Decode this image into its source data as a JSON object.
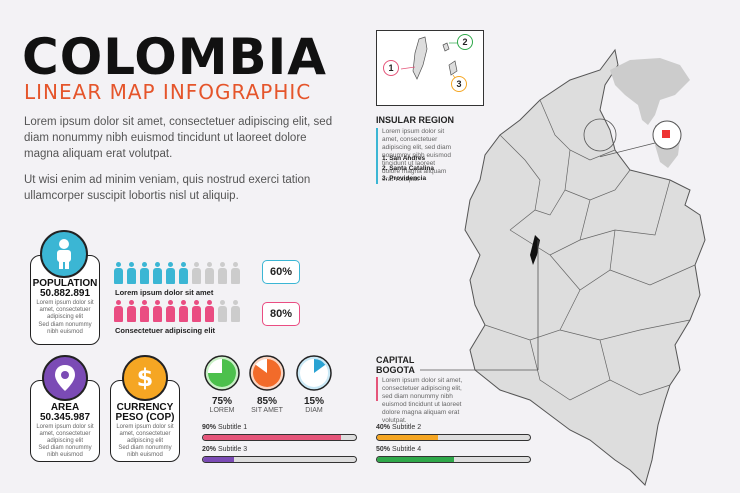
{
  "header": {
    "title": "COLOMBIA",
    "subtitle": "LINEAR MAP INFOGRAPHIC"
  },
  "intro": {
    "para1": "Lorem ipsum dolor sit amet, consectetuer adipiscing elit, sed diam nonummy nibh euismod tincidunt ut laoreet dolore magna aliquam erat volutpat.",
    "para2": "Ut wisi enim ad minim veniam, quis nostrud exerci tation ullamcorper suscipit lobortis nisl ut aliquip."
  },
  "population": {
    "label": "POPULATION",
    "value": "50.882.891",
    "text1": "Lorem ipsum dolor sit amet, consectetuer adipiscing elit",
    "text2": "Sed diam nonummy nibh euismod"
  },
  "people_rows": [
    {
      "percent_label": "60%",
      "caption": "Lorem ipsum dolor sit amet",
      "filled": 6,
      "total": 10,
      "color": "#3bb6d4"
    },
    {
      "percent_label": "80%",
      "caption": "Consectetuer adipiscing elit",
      "filled": 8,
      "total": 10,
      "color": "#ea4d82"
    }
  ],
  "area": {
    "label": "AREA",
    "value": "50.345.987",
    "text1": "Lorem ipsum dolor sit amet, consectetuer adipiscing elit",
    "text2": "Sed diam nonummy nibh euismod"
  },
  "currency": {
    "label": "CURRENCY",
    "value": "PESO (COP)",
    "text1": "Lorem ipsum dolor sit amet, consectetuer adipiscing elit",
    "text2": "Sed diam nonummy nibh euismod"
  },
  "pies": [
    {
      "pct": "75%",
      "label": "LOREM",
      "value": 0.75,
      "color": "#4cc04c",
      "bg": "#c9f0c6"
    },
    {
      "pct": "85%",
      "label": "SIT AMET",
      "value": 0.85,
      "color": "#f26b2a",
      "bg": "#fbd5c2"
    },
    {
      "pct": "15%",
      "label": "DIAM",
      "value": 0.15,
      "color": "#2aa3d3",
      "bg": "#cbe9f6"
    }
  ],
  "bars": [
    {
      "pct": "90%",
      "label": "Subtitle 1",
      "value": 0.9,
      "color": "#e5557a"
    },
    {
      "pct": "20%",
      "label": "Subtitle 3",
      "value": 0.2,
      "color": "#7b4bb5"
    },
    {
      "pct": "40%",
      "label": "Subtitle 2",
      "value": 0.4,
      "color": "#f5a623"
    },
    {
      "pct": "50%",
      "label": "Subtitle 4",
      "value": 0.5,
      "color": "#2fa84a"
    }
  ],
  "insular": {
    "title": "INSULAR REGION",
    "text": "Lorem ipsum dolor sit amet, consectetuer adipiscing elit, sed diam nonummy nibh euismod tincidunt ut laoreet dolore magna aliquam erat volutpat.",
    "items": [
      "1. San Andres",
      "2. Santa Catalina",
      "3. Providencia"
    ],
    "markers": [
      "1",
      "2",
      "3"
    ]
  },
  "capital": {
    "title_line1": "CAPITAL",
    "title_line2": "BOGOTA",
    "text": "Lorem ipsum dolor sit amet, consectetuer adipiscing elit, sed diam nonummy nibh euismod tincidunt ut laoreet dolore magna aliquam erat volutpat."
  },
  "icons": {
    "population": "person-icon",
    "area": "location-pin-icon",
    "currency": "dollar-icon"
  },
  "colors": {
    "accent": "#e5552b",
    "population": "#3bb6d4",
    "area": "#7b4bb5",
    "currency": "#f5a623"
  }
}
